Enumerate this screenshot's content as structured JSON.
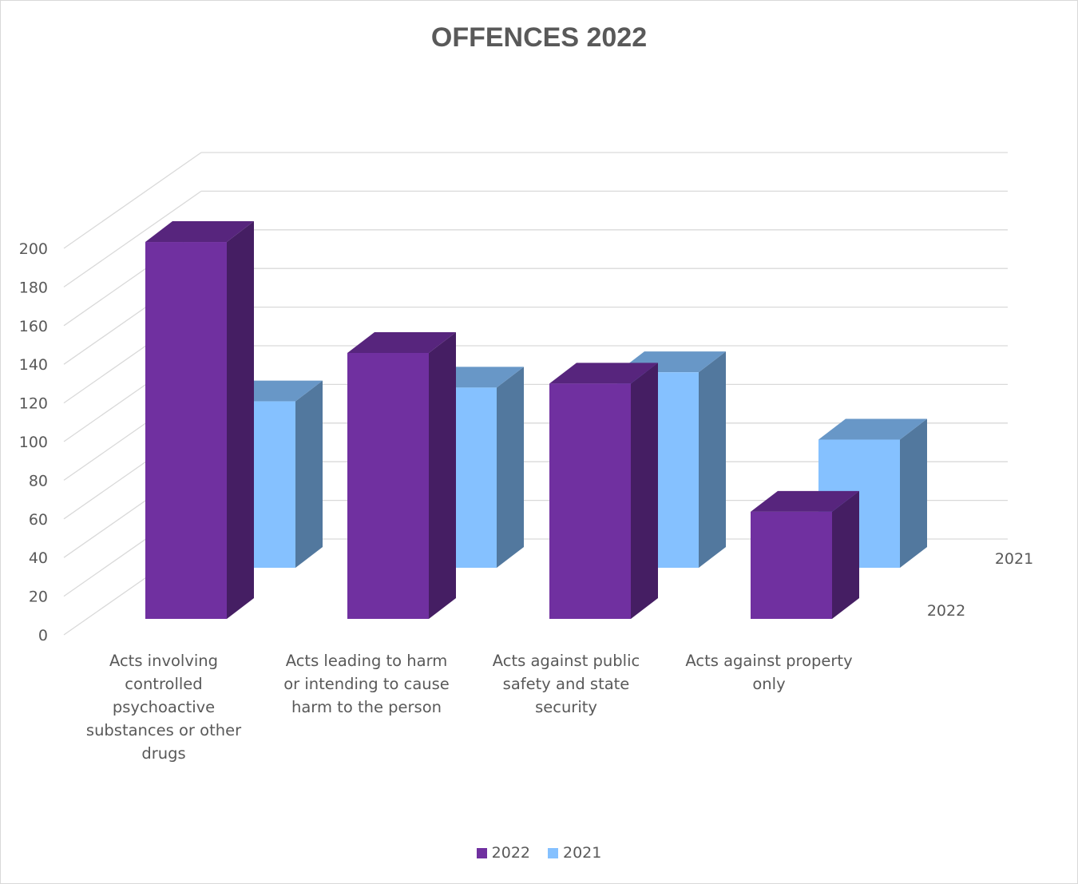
{
  "chart_data": {
    "type": "bar",
    "title": "OFFENCES 2022",
    "categories": [
      "Acts involving controlled psychoactive substances or other drugs",
      "Acts leading to harm or intending to cause harm to the person",
      "Acts against public safety and state security",
      "Acts against property only"
    ],
    "category_lines": [
      [
        "Acts involving",
        "controlled",
        "psychoactive",
        "substances or other",
        "drugs"
      ],
      [
        "Acts leading to harm",
        "or intending to cause",
        "harm to the person"
      ],
      [
        "Acts against public",
        "safety and state",
        "security"
      ],
      [
        "Acts against property",
        "only"
      ]
    ],
    "series": [
      {
        "name": "2022",
        "values": [
          197,
          139,
          123,
          56
        ],
        "color": "#7030A0"
      },
      {
        "name": "2021",
        "values": [
          104,
          113,
          123,
          79
        ],
        "color": "#85C1FF"
      }
    ],
    "ylim": [
      0,
      200
    ],
    "yticks": [
      0,
      20,
      40,
      60,
      80,
      100,
      120,
      140,
      160,
      180,
      200
    ],
    "depth_labels": [
      "2022",
      "2021"
    ],
    "grid": true,
    "legend_position": "bottom",
    "chart_style": "3d-column"
  }
}
